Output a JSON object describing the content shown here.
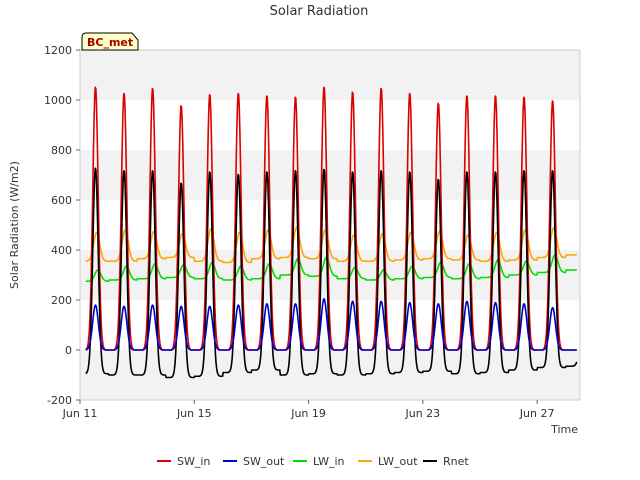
{
  "chart_data": {
    "type": "line",
    "title": "Solar Radiation",
    "xlabel": "Time",
    "ylabel": "Solar Radiation (W/m2)",
    "badge": "BC_met",
    "ylim": [
      -200,
      1200
    ],
    "yticks": [
      -200,
      0,
      200,
      400,
      600,
      800,
      1000,
      1200
    ],
    "xlim": [
      "2019-06-11",
      "2019-06-28T12:00"
    ],
    "xticks": [
      {
        "date": "2019-06-11",
        "label": "Jun 11"
      },
      {
        "date": "2019-06-15",
        "label": "Jun 15"
      },
      {
        "date": "2019-06-19",
        "label": "Jun 19"
      },
      {
        "date": "2019-06-23",
        "label": "Jun 23"
      },
      {
        "date": "2019-06-27",
        "label": "Jun 27"
      }
    ],
    "grid": "horizontal bands",
    "legend_position": "bottom",
    "days": [
      "Jun 11",
      "Jun 12",
      "Jun 13",
      "Jun 14",
      "Jun 15",
      "Jun 16",
      "Jun 17",
      "Jun 18",
      "Jun 19",
      "Jun 20",
      "Jun 21",
      "Jun 22",
      "Jun 23",
      "Jun 24",
      "Jun 25",
      "Jun 26",
      "Jun 27",
      "Jun 28"
    ],
    "series": [
      {
        "name": "SW_in",
        "color": "#dd0000",
        "night": 0,
        "daily_peak": [
          1055,
          1030,
          1050,
          980,
          1025,
          1030,
          1020,
          1015,
          1055,
          1035,
          1050,
          1030,
          990,
          1020,
          1020,
          1015,
          1000,
          0
        ]
      },
      {
        "name": "SW_out",
        "color": "#0000cc",
        "night": 0,
        "daily_peak": [
          180,
          175,
          180,
          175,
          175,
          180,
          185,
          185,
          205,
          195,
          195,
          190,
          185,
          195,
          190,
          185,
          170,
          0
        ]
      },
      {
        "name": "LW_in",
        "color": "#00dd00",
        "daily_min": [
          275,
          280,
          285,
          290,
          285,
          280,
          285,
          300,
          295,
          285,
          280,
          285,
          290,
          285,
          290,
          300,
          310,
          320
        ],
        "daily_max": [
          320,
          335,
          345,
          340,
          350,
          335,
          345,
          365,
          370,
          330,
          320,
          335,
          350,
          345,
          360,
          355,
          380,
          330
        ]
      },
      {
        "name": "LW_out",
        "color": "#ffa500",
        "daily_min": [
          355,
          355,
          365,
          370,
          355,
          350,
          365,
          370,
          365,
          355,
          355,
          360,
          365,
          360,
          355,
          360,
          370,
          380
        ],
        "daily_max": [
          470,
          480,
          475,
          465,
          485,
          470,
          480,
          490,
          480,
          460,
          465,
          470,
          475,
          460,
          470,
          480,
          490,
          390
        ]
      },
      {
        "name": "Rnet",
        "color": "#000000",
        "daily_min": [
          -95,
          -100,
          -100,
          -110,
          -105,
          -90,
          -80,
          -100,
          -95,
          -100,
          -95,
          -90,
          -85,
          -95,
          -90,
          -80,
          -70,
          -65
        ],
        "daily_peak": [
          730,
          720,
          720,
          670,
          715,
          705,
          715,
          720,
          725,
          715,
          720,
          715,
          685,
          715,
          715,
          720,
          720,
          0
        ]
      }
    ]
  }
}
